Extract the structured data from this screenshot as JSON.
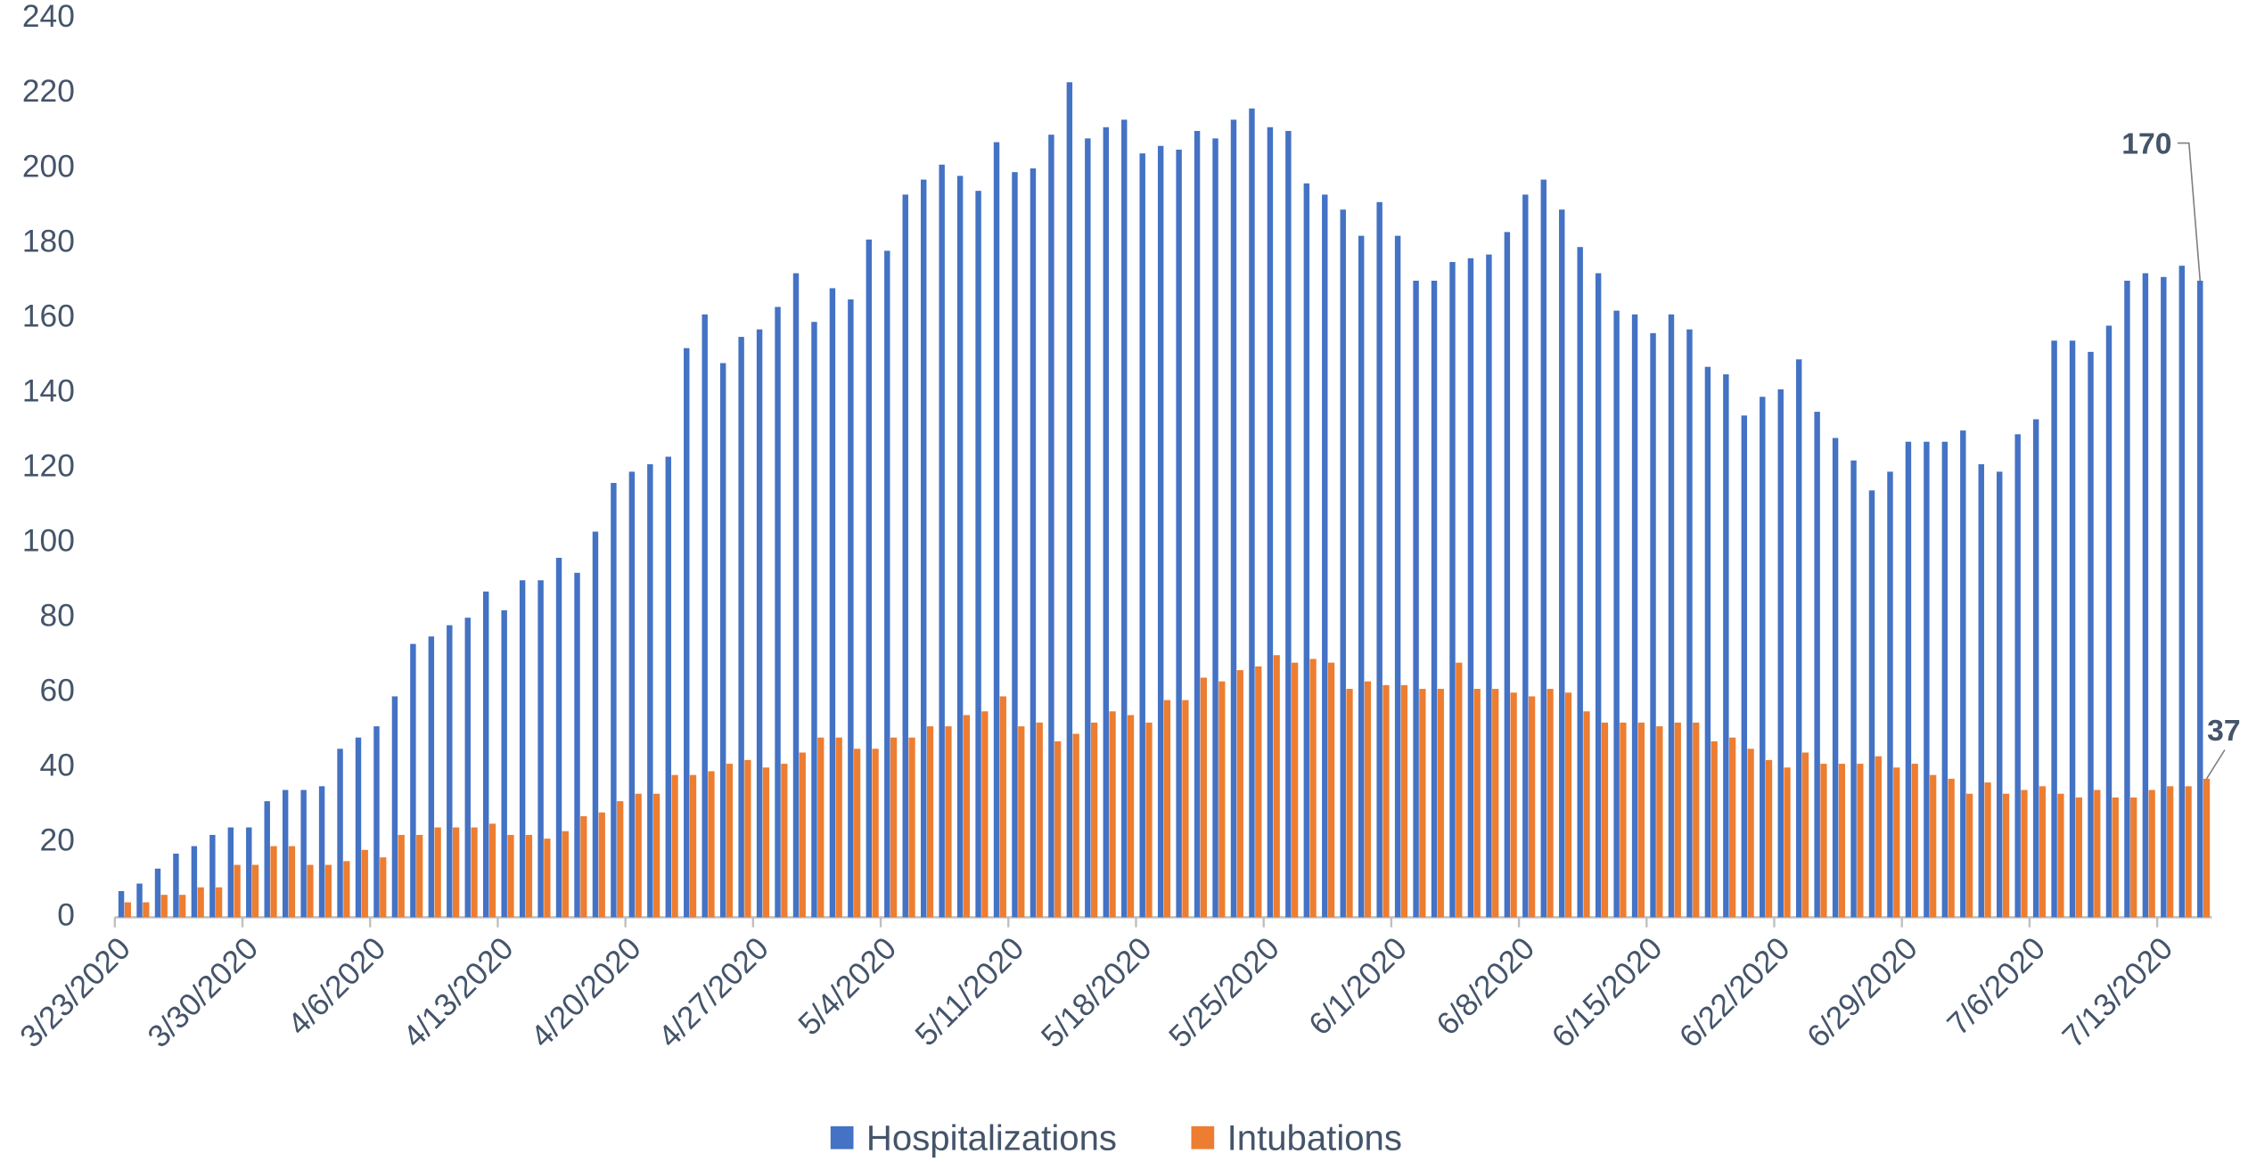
{
  "chart_data": {
    "type": "bar",
    "categories": [
      "3/23/2020",
      null,
      null,
      null,
      null,
      null,
      null,
      "3/30/2020",
      null,
      null,
      null,
      null,
      null,
      null,
      "4/6/2020",
      null,
      null,
      null,
      null,
      null,
      null,
      "4/13/2020",
      null,
      null,
      null,
      null,
      null,
      null,
      "4/20/2020",
      null,
      null,
      null,
      null,
      null,
      null,
      "4/27/2020",
      null,
      null,
      null,
      null,
      null,
      null,
      "5/4/2020",
      null,
      null,
      null,
      null,
      null,
      null,
      "5/11/2020",
      null,
      null,
      null,
      null,
      null,
      null,
      "5/18/2020",
      null,
      null,
      null,
      null,
      null,
      null,
      "5/25/2020",
      null,
      null,
      null,
      null,
      null,
      null,
      "6/1/2020",
      null,
      null,
      null,
      null,
      null,
      null,
      "6/8/2020",
      null,
      null,
      null,
      null,
      null,
      null,
      "6/15/2020",
      null,
      null,
      null,
      null,
      null,
      null,
      "6/22/2020",
      null,
      null,
      null,
      null,
      null,
      null,
      "6/29/2020",
      null,
      null,
      null,
      null,
      null,
      null,
      "7/6/2020",
      null,
      null,
      null,
      null,
      null,
      null,
      "7/13/2020",
      null,
      null
    ],
    "series": [
      {
        "name": "Hospitalizations",
        "color": "#4472c4",
        "values": [
          7,
          9,
          13,
          17,
          19,
          22,
          24,
          24,
          31,
          34,
          34,
          35,
          45,
          48,
          51,
          59,
          73,
          75,
          78,
          80,
          87,
          82,
          90,
          90,
          96,
          92,
          103,
          116,
          119,
          121,
          123,
          152,
          161,
          148,
          155,
          157,
          163,
          172,
          159,
          168,
          165,
          181,
          178,
          193,
          197,
          201,
          198,
          194,
          207,
          199,
          200,
          209,
          223,
          208,
          211,
          213,
          204,
          206,
          205,
          210,
          208,
          213,
          216,
          211,
          210,
          196,
          193,
          189,
          182,
          191,
          182,
          170,
          170,
          175,
          176,
          177,
          183,
          193,
          197,
          189,
          179,
          172,
          162,
          161,
          156,
          161,
          157,
          147,
          145,
          134,
          139,
          141,
          149,
          135,
          128,
          122,
          114,
          119,
          127,
          127,
          127,
          130,
          121,
          119,
          129,
          133,
          154,
          154,
          151,
          158,
          170,
          172,
          171,
          174,
          170
        ],
        "value_labels": [
          null,
          null,
          null,
          null,
          null,
          null,
          null,
          null,
          null,
          null,
          null,
          null,
          null,
          null,
          null,
          null,
          null,
          null,
          null,
          null,
          null,
          null,
          null,
          null,
          null,
          null,
          null,
          null,
          null,
          null,
          null,
          null,
          null,
          null,
          null,
          null,
          null,
          null,
          null,
          null,
          null,
          null,
          null,
          null,
          null,
          null,
          null,
          null,
          null,
          null,
          null,
          null,
          null,
          null,
          null,
          null,
          null,
          null,
          null,
          null,
          null,
          null,
          null,
          null,
          null,
          null,
          null,
          null,
          null,
          null,
          null,
          null,
          null,
          null,
          null,
          null,
          null,
          null,
          null,
          null,
          null,
          null,
          null,
          null,
          null,
          null,
          null,
          null,
          null,
          null,
          null,
          null,
          null,
          null,
          null,
          null,
          null,
          null,
          null,
          null,
          null,
          null,
          null,
          null,
          null,
          null,
          null,
          null,
          null,
          null,
          null,
          null,
          null,
          null,
          "170"
        ]
      },
      {
        "name": "Intubations",
        "color": "#ed7d31",
        "values": [
          4,
          4,
          6,
          6,
          8,
          8,
          14,
          14,
          19,
          19,
          14,
          14,
          15,
          18,
          16,
          22,
          22,
          24,
          24,
          24,
          25,
          22,
          22,
          21,
          23,
          27,
          28,
          31,
          33,
          33,
          38,
          38,
          39,
          41,
          42,
          40,
          41,
          44,
          48,
          48,
          45,
          45,
          48,
          48,
          51,
          51,
          54,
          55,
          59,
          51,
          52,
          47,
          49,
          52,
          55,
          54,
          52,
          58,
          58,
          64,
          63,
          66,
          67,
          70,
          68,
          69,
          68,
          61,
          63,
          62,
          62,
          61,
          61,
          68,
          61,
          61,
          60,
          59,
          61,
          60,
          55,
          52,
          52,
          52,
          51,
          52,
          52,
          47,
          48,
          45,
          42,
          40,
          44,
          41,
          41,
          41,
          43,
          40,
          41,
          38,
          37,
          33,
          36,
          33,
          34,
          35,
          33,
          32,
          34,
          32,
          32,
          34,
          35,
          35,
          37
        ],
        "value_labels": [
          null,
          null,
          null,
          null,
          null,
          null,
          null,
          null,
          null,
          null,
          null,
          null,
          null,
          null,
          null,
          null,
          null,
          null,
          null,
          null,
          null,
          null,
          null,
          null,
          null,
          null,
          null,
          null,
          null,
          null,
          null,
          null,
          null,
          null,
          null,
          null,
          null,
          null,
          null,
          null,
          null,
          null,
          null,
          null,
          null,
          null,
          null,
          null,
          null,
          null,
          null,
          null,
          null,
          null,
          null,
          null,
          null,
          null,
          null,
          null,
          null,
          null,
          null,
          null,
          null,
          null,
          null,
          null,
          null,
          null,
          null,
          null,
          null,
          null,
          null,
          null,
          null,
          null,
          null,
          null,
          null,
          null,
          null,
          null,
          null,
          null,
          null,
          null,
          null,
          null,
          null,
          null,
          null,
          null,
          null,
          null,
          null,
          null,
          null,
          null,
          null,
          null,
          null,
          null,
          null,
          null,
          null,
          null,
          null,
          null,
          null,
          null,
          null,
          null,
          "37"
        ]
      }
    ],
    "ylim": [
      0,
      240
    ],
    "yticks": [
      0,
      20,
      40,
      60,
      80,
      100,
      120,
      140,
      160,
      180,
      200,
      220,
      240
    ],
    "grid": false,
    "legend": "bottom"
  }
}
